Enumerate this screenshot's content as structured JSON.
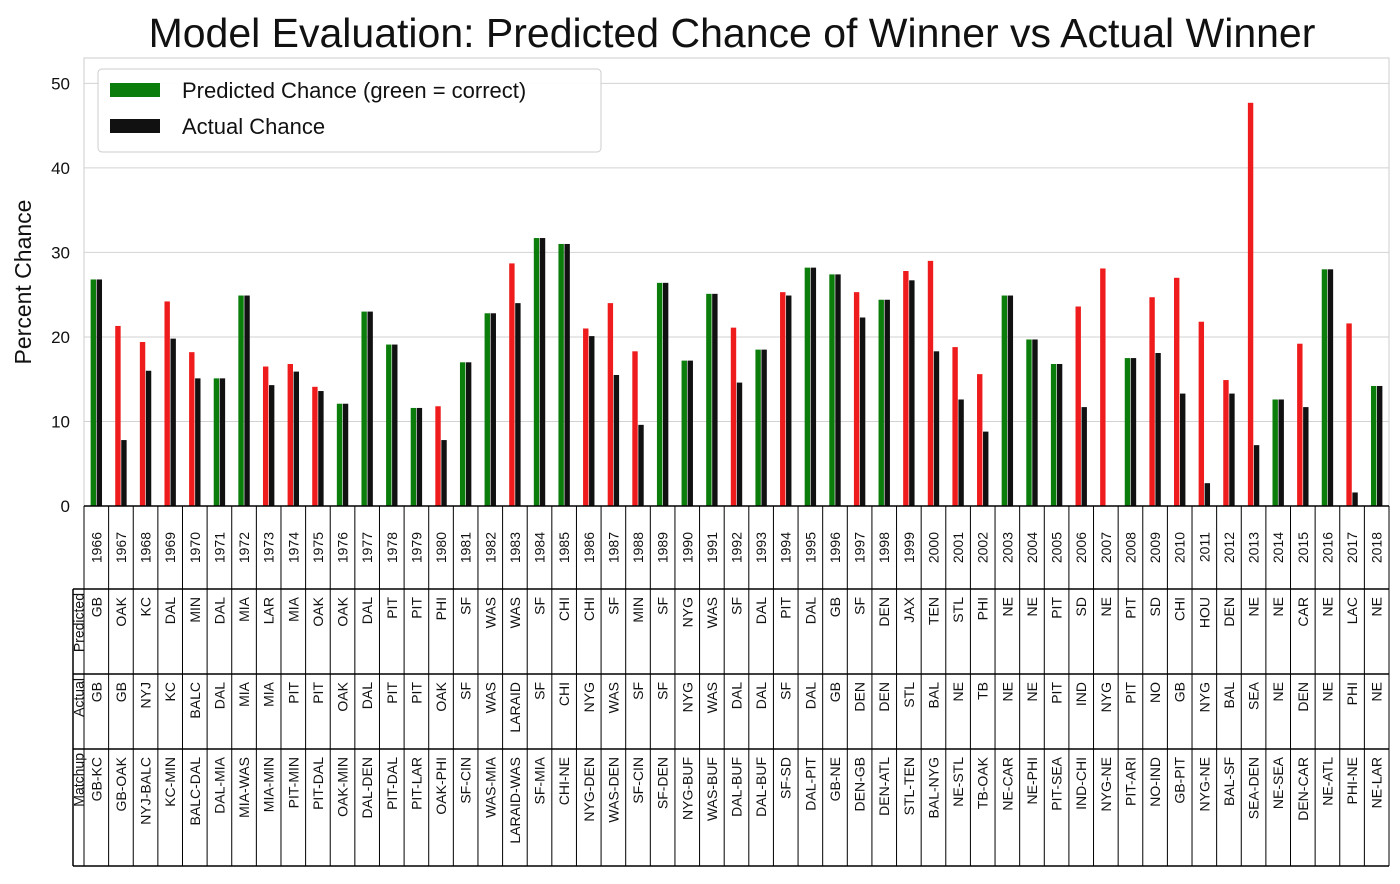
{
  "chart_data": {
    "type": "bar",
    "title": "Model Evaluation: Predicted Chance of Winner vs Actual Winner",
    "ylabel": "Percent Chance",
    "ylim": [
      0,
      53
    ],
    "yticks": [
      0,
      10,
      20,
      30,
      40,
      50
    ],
    "grid": true,
    "legend": {
      "position": "top-left",
      "entries": [
        "Predicted Chance (green = correct)",
        "Actual Chance"
      ]
    },
    "colors": {
      "correct": "#0b7d0b",
      "incorrect": "#ee1c1c",
      "actual": "#111111"
    },
    "categories": [
      "1966",
      "1967",
      "1968",
      "1969",
      "1970",
      "1971",
      "1972",
      "1973",
      "1974",
      "1975",
      "1976",
      "1977",
      "1978",
      "1979",
      "1980",
      "1981",
      "1982",
      "1983",
      "1984",
      "1985",
      "1986",
      "1987",
      "1988",
      "1989",
      "1990",
      "1991",
      "1992",
      "1993",
      "1994",
      "1995",
      "1996",
      "1997",
      "1998",
      "1999",
      "2000",
      "2001",
      "2002",
      "2003",
      "2004",
      "2005",
      "2006",
      "2007",
      "2008",
      "2009",
      "2010",
      "2011",
      "2012",
      "2013",
      "2014",
      "2015",
      "2016",
      "2017",
      "2018"
    ],
    "series": [
      {
        "name": "Predicted Chance (green = correct)",
        "values": [
          26.8,
          21.3,
          19.4,
          24.2,
          18.2,
          15.1,
          24.9,
          16.5,
          16.8,
          14.1,
          12.1,
          23.0,
          19.1,
          11.6,
          11.8,
          17.0,
          22.8,
          28.7,
          31.7,
          31.0,
          21.0,
          24.0,
          18.3,
          26.4,
          17.2,
          25.1,
          21.1,
          18.5,
          25.3,
          28.2,
          27.4,
          25.3,
          24.4,
          27.8,
          29.0,
          18.8,
          15.6,
          24.9,
          19.7,
          16.8,
          23.6,
          28.1,
          17.5,
          24.7,
          27.0,
          21.8,
          14.9,
          47.7,
          12.6,
          19.2,
          28.0,
          21.6,
          14.2
        ],
        "correct": [
          true,
          false,
          false,
          false,
          false,
          true,
          true,
          false,
          false,
          false,
          true,
          true,
          true,
          true,
          false,
          true,
          true,
          false,
          true,
          true,
          false,
          false,
          false,
          true,
          true,
          true,
          false,
          true,
          false,
          true,
          true,
          false,
          true,
          false,
          false,
          false,
          false,
          true,
          true,
          true,
          false,
          false,
          true,
          false,
          false,
          false,
          false,
          false,
          true,
          false,
          true,
          false,
          true
        ]
      },
      {
        "name": "Actual Chance",
        "values": [
          26.8,
          7.8,
          16.0,
          19.8,
          15.1,
          15.1,
          24.9,
          14.3,
          15.9,
          13.6,
          12.1,
          23.0,
          19.1,
          11.6,
          7.8,
          17.0,
          22.8,
          24.0,
          31.7,
          31.0,
          20.1,
          15.5,
          9.6,
          26.4,
          17.2,
          25.1,
          14.6,
          18.5,
          24.9,
          28.2,
          27.4,
          22.3,
          24.4,
          26.7,
          18.3,
          12.6,
          8.8,
          24.9,
          19.7,
          16.8,
          11.7,
          0,
          17.5,
          18.1,
          13.3,
          2.7,
          13.3,
          7.2,
          12.6,
          11.7,
          28.0,
          1.6,
          14.2
        ]
      }
    ],
    "table": {
      "row_labels": [
        "Predicted",
        "Actual",
        "Matchup"
      ],
      "predicted": [
        "GB",
        "OAK",
        "KC",
        "DAL",
        "MIN",
        "DAL",
        "MIA",
        "LAR",
        "MIA",
        "OAK",
        "OAK",
        "DAL",
        "PIT",
        "PIT",
        "PHI",
        "SF",
        "WAS",
        "WAS",
        "SF",
        "CHI",
        "CHI",
        "SF",
        "MIN",
        "SF",
        "NYG",
        "WAS",
        "SF",
        "DAL",
        "PIT",
        "DAL",
        "GB",
        "SF",
        "DEN",
        "JAX",
        "TEN",
        "STL",
        "PHI",
        "NE",
        "NE",
        "PIT",
        "SD",
        "NE",
        "PIT",
        "SD",
        "CHI",
        "HOU",
        "DEN",
        "NE",
        "NE",
        "CAR",
        "NE",
        "LAC",
        "NE"
      ],
      "actual": [
        "GB",
        "GB",
        "NYJ",
        "KC",
        "BALC",
        "DAL",
        "MIA",
        "MIA",
        "PIT",
        "PIT",
        "OAK",
        "DAL",
        "PIT",
        "PIT",
        "OAK",
        "SF",
        "WAS",
        "LARAID",
        "SF",
        "CHI",
        "NYG",
        "WAS",
        "SF",
        "SF",
        "NYG",
        "WAS",
        "DAL",
        "DAL",
        "SF",
        "DAL",
        "GB",
        "DEN",
        "DEN",
        "STL",
        "BAL",
        "NE",
        "TB",
        "NE",
        "NE",
        "PIT",
        "IND",
        "NYG",
        "PIT",
        "NO",
        "GB",
        "NYG",
        "BAL",
        "SEA",
        "NE",
        "DEN",
        "NE",
        "PHI",
        "NE"
      ],
      "matchup": [
        "GB-KC",
        "GB-OAK",
        "NYJ-BALC",
        "KC-MIN",
        "BALC-DAL",
        "DAL-MIA",
        "MIA-WAS",
        "MIA-MIN",
        "PIT-MIN",
        "PIT-DAL",
        "OAK-MIN",
        "DAL-DEN",
        "PIT-DAL",
        "PIT-LAR",
        "OAK-PHI",
        "SF-CIN",
        "WAS-MIA",
        "LARAID-WAS",
        "SF-MIA",
        "CHI-NE",
        "NYG-DEN",
        "WAS-DEN",
        "SF-CIN",
        "SF-DEN",
        "NYG-BUF",
        "WAS-BUF",
        "DAL-BUF",
        "DAL-BUF",
        "SF-SD",
        "DAL-PIT",
        "GB-NE",
        "DEN-GB",
        "DEN-ATL",
        "STL-TEN",
        "BAL-NYG",
        "NE-STL",
        "TB-OAK",
        "NE-CAR",
        "NE-PHI",
        "PIT-SEA",
        "IND-CHI",
        "NYG-NE",
        "PIT-ARI",
        "NO-IND",
        "GB-PIT",
        "NYG-NE",
        "BAL-SF",
        "SEA-DEN",
        "NE-SEA",
        "DEN-CAR",
        "NE-ATL",
        "PHI-NE",
        "NE-LAR"
      ]
    }
  }
}
